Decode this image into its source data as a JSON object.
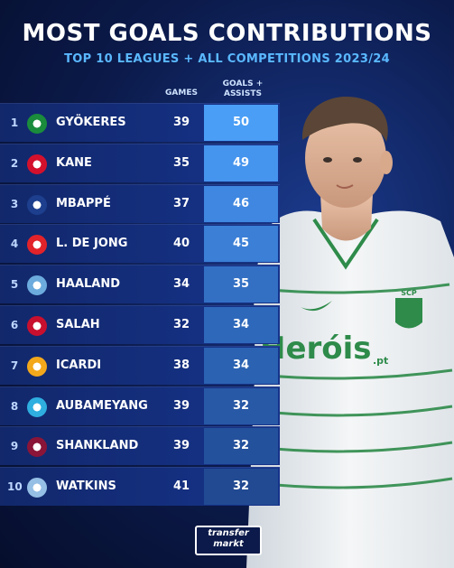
{
  "title": "MOST GOALS CONTRIBUTIONS",
  "subtitle": "TOP 10 LEAGUES + ALL COMPETITIONS 2023/24",
  "columns": {
    "games": "GAMES",
    "ga_line1": "GOALS +",
    "ga_line2": "ASSISTS"
  },
  "rows": [
    {
      "rank": "1",
      "name": "GYÖKERES",
      "games": "39",
      "ga": "50",
      "badge": "sporting-badge-icon",
      "color": "#1a8c3c",
      "ga_fill": "#4a9ef5"
    },
    {
      "rank": "2",
      "name": "KANE",
      "games": "35",
      "ga": "49",
      "badge": "bayern-badge-icon",
      "color": "#d4112d",
      "ga_fill": "#4594ee"
    },
    {
      "rank": "3",
      "name": "MBAPPÉ",
      "games": "37",
      "ga": "46",
      "badge": "psg-badge-icon",
      "color": "#1d3f8e",
      "ga_fill": "#3f87e0"
    },
    {
      "rank": "4",
      "name": "L. DE JONG",
      "games": "40",
      "ga": "45",
      "badge": "psv-badge-icon",
      "color": "#e2232a",
      "ga_fill": "#3b7fd6"
    },
    {
      "rank": "5",
      "name": "HAALAND",
      "games": "34",
      "ga": "35",
      "badge": "mancity-badge-icon",
      "color": "#6cabdd",
      "ga_fill": "#3370c4"
    },
    {
      "rank": "6",
      "name": "SALAH",
      "games": "32",
      "ga": "34",
      "badge": "liverpool-badge-icon",
      "color": "#c8102e",
      "ga_fill": "#2e68ba"
    },
    {
      "rank": "7",
      "name": "ICARDI",
      "games": "38",
      "ga": "34",
      "badge": "galatasaray-badge-icon",
      "color": "#f3a81c",
      "ga_fill": "#2b62b2"
    },
    {
      "rank": "8",
      "name": "AUBAMEYANG",
      "games": "39",
      "ga": "32",
      "badge": "marseille-badge-icon",
      "color": "#2faee0",
      "ga_fill": "#2859a6"
    },
    {
      "rank": "9",
      "name": "SHANKLAND",
      "games": "39",
      "ga": "32",
      "badge": "hearts-badge-icon",
      "color": "#8a1538",
      "ga_fill": "#24519c"
    },
    {
      "rank": "10",
      "name": "WATKINS",
      "games": "41",
      "ga": "32",
      "badge": "astonvilla-badge-icon",
      "color": "#95bfe5",
      "ga_fill": "#214a92"
    }
  ],
  "shirt": {
    "sponsor": "Heróis",
    "sponsor_suffix": ".pt",
    "crest": "SCP"
  },
  "logo": {
    "line1": "transfer",
    "line2": "markt"
  }
}
